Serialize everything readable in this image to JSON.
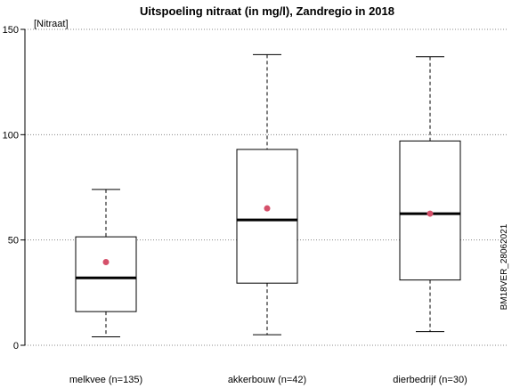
{
  "chart_data": {
    "type": "boxplot",
    "title": "Uitspoeling nitraat (in mg/l), Zandregio in 2018",
    "ylabel": "[Nitraat]",
    "ylim": [
      0,
      150
    ],
    "yticks": [
      0,
      50,
      100,
      150
    ],
    "grid": "horizontal-dotted",
    "side_label": "BM18VER_28062021",
    "categories": [
      "melkvee (n=135)",
      "akkerbouw (n=42)",
      "dierbedrijf (n=30)"
    ],
    "boxes": [
      {
        "whisker_low": 4,
        "q1": 16,
        "median": 32,
        "q3": 51.5,
        "whisker_high": 74,
        "mean": 39.5
      },
      {
        "whisker_low": 5,
        "q1": 29.5,
        "median": 59.5,
        "q3": 93,
        "whisker_high": 138,
        "mean": 65
      },
      {
        "whisker_low": 6.5,
        "q1": 31,
        "median": 62.5,
        "q3": 97,
        "whisker_high": 137,
        "mean": 62.5
      }
    ],
    "colors": {
      "mean_marker": "#d5506a",
      "box_line": "#000000",
      "grid": "#888888"
    }
  }
}
